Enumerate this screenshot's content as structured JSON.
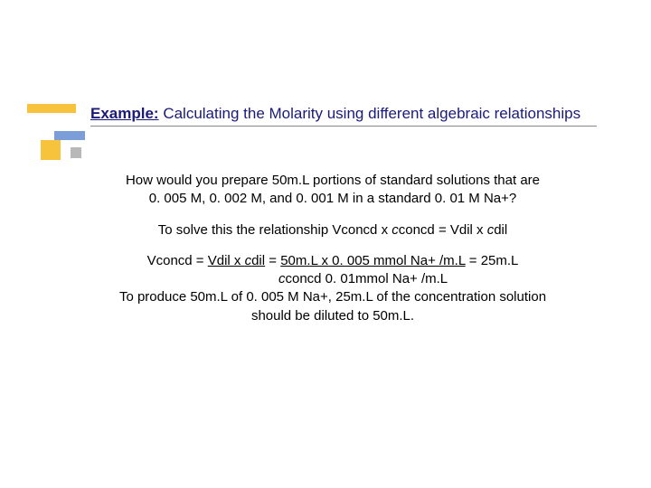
{
  "title": {
    "heading_label": "Example:",
    "heading_rest": " Calculating the Molarity using different algebraic relationships"
  },
  "body": {
    "q1": "How would you prepare 50m.L portions of standard solutions that are",
    "q2": "0. 005 M, 0. 002 M, and 0. 001 M in a standard 0. 01 M Na+?",
    "rel_pre": "To solve this the relationship Vconcd x ",
    "rel_c1": "c",
    "rel_mid": "concd = Vdil x ",
    "rel_c2": "c",
    "rel_post": "dil",
    "eq1_a": "Vconcd  = ",
    "eq1_b": "Vdil x ",
    "eq1_c": "c",
    "eq1_d": "dil",
    "eq1_e": "  = ",
    "eq1_f": "50m.L x 0. 005 mmol Na+ /m.L",
    "eq1_g": " = 25m.L",
    "eq2_a": "c",
    "eq2_b": "concd                     0. 01mmol Na+ /m.L",
    "concl1": "To produce 50m.L of 0. 005 M Na+, 25m.L of the concentration solution",
    "concl2": "should be diluted to 50m.L."
  },
  "style": {
    "bg": "#ffffff",
    "title_color": "#1a1a7a",
    "text_color": "#000000",
    "title_fontsize": 17,
    "body_fontsize": 15,
    "accent_yellow": "#f7c23c",
    "accent_blue": "#7b9ed8",
    "accent_gray": "#b8b8b8"
  }
}
